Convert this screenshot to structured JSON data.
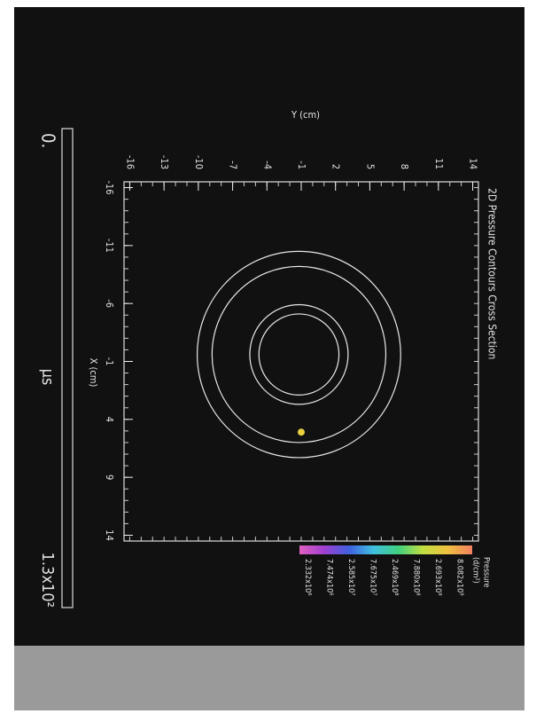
{
  "chart_data": {
    "type": "contour",
    "title": "2D Pressure Contours Cross Section",
    "xlabel": "X (cm)",
    "ylabel": "Y (cm)",
    "xlim": [
      -16.5,
      14.5
    ],
    "ylim": [
      -16.5,
      14.5
    ],
    "xticks": [
      -16,
      -11,
      -6,
      -1,
      4,
      9,
      14
    ],
    "yticks": [
      -16,
      -13,
      -10,
      -7,
      -4,
      -1,
      2,
      5,
      8,
      11,
      14
    ],
    "contours": [
      {
        "x": -1.6,
        "y": -1.2,
        "r": 8.9
      },
      {
        "x": -1.6,
        "y": -1.2,
        "r": 7.6
      },
      {
        "x": -1.6,
        "y": -1.2,
        "r": 4.3
      },
      {
        "x": -1.6,
        "y": -1.2,
        "r": 3.5
      }
    ],
    "source": {
      "x": 5.1,
      "y": -1.0,
      "color": "#e8d040"
    },
    "contour_color": "#e8e8e8",
    "colorbar": {
      "title": "Pressure",
      "unit": "(d/cm²)",
      "labels": [
        "8.082x10⁹",
        "2.693x10⁹",
        "7.880x10⁸",
        "2.469x10⁸",
        "7.675x10⁷",
        "2.585x10⁷",
        "7.474x10⁶",
        "2.332x10⁶"
      ],
      "colors": [
        "#f08060",
        "#f0c040",
        "#c0e040",
        "#40d080",
        "#40c0e0",
        "#4060e0",
        "#a040d0",
        "#e060c0"
      ]
    },
    "time": {
      "start": "0.",
      "unit": "μs",
      "end": "1.3x10²"
    }
  }
}
